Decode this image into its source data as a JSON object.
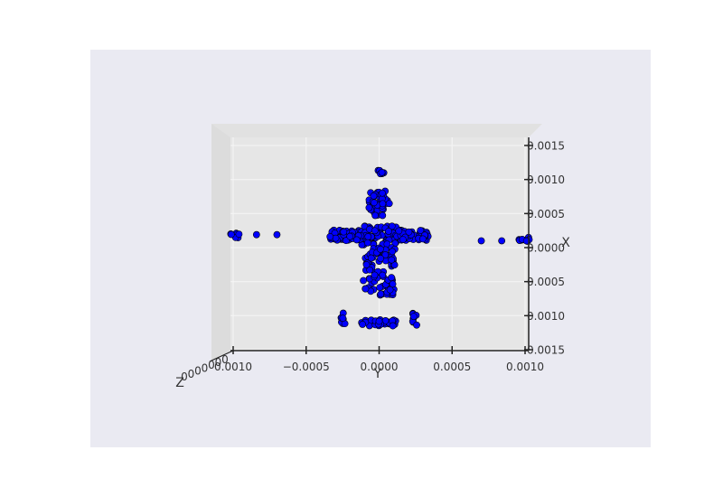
{
  "chart_data": {
    "type": "scatter",
    "projection": "3d",
    "view": "looking down the Z axis",
    "background_color": "#eaeaf2",
    "pane_color": "#e6e6e6",
    "point_color": "#0000ff",
    "point_edge_color": "#000000",
    "grid": true,
    "xlabel": "Y",
    "ylabel": "X",
    "zlabel": "Z",
    "xlim": [
      -0.001,
      0.001
    ],
    "ylim": [
      -0.0015,
      0.0015
    ],
    "x_ticks": [
      {
        "value": -0.001,
        "label": "0.0010"
      },
      {
        "value": -0.0005,
        "label": "−0.0005"
      },
      {
        "value": 0.0,
        "label": "0.0000"
      },
      {
        "value": 0.0005,
        "label": "0.0005"
      },
      {
        "value": 0.001,
        "label": "0.0010"
      }
    ],
    "y_ticks": [
      {
        "value": 0.0015,
        "label": "0.0015"
      },
      {
        "value": 0.001,
        "label": "0.0010"
      },
      {
        "value": 0.0005,
        "label": "0.0005"
      },
      {
        "value": 0.0,
        "label": "0.0000"
      },
      {
        "value": -0.0005,
        "label": "0.0005"
      },
      {
        "value": -0.001,
        "label": "0.0010"
      },
      {
        "value": -0.0015,
        "label": "0.0015"
      }
    ],
    "z_tick_labels": [
      "0",
      "0",
      "0",
      "0",
      "0",
      "0",
      "0"
    ],
    "clusters": [
      {
        "x": [
          -0.00099,
          -0.00099
        ],
        "y": [
          0.00017,
          0.00017
        ],
        "n": 10,
        "spread": [
          4e-05,
          4e-05
        ]
      },
      {
        "x": [
          -0.00084,
          -0.00084
        ],
        "y": [
          0.00019,
          0.00019
        ],
        "n": 1,
        "spread": [
          0,
          0
        ]
      },
      {
        "x": [
          -0.0007,
          -0.0007
        ],
        "y": [
          0.00019,
          0.00019
        ],
        "n": 1,
        "spread": [
          0,
          0
        ]
      },
      {
        "x": [
          0.00099,
          0.00099
        ],
        "y": [
          0.00012,
          0.00012
        ],
        "n": 10,
        "spread": [
          4e-05,
          4e-05
        ]
      },
      {
        "x": [
          0.00084,
          0.00084
        ],
        "y": [
          0.0001,
          0.0001
        ],
        "n": 1,
        "spread": [
          0,
          0
        ]
      },
      {
        "x": [
          0.0007,
          0.0007
        ],
        "y": [
          0.0001,
          0.0001
        ],
        "n": 1,
        "spread": [
          0,
          0
        ]
      },
      {
        "x": [
          -0.0,
          -0.0
        ],
        "y": [
          0.00111,
          0.00111
        ],
        "n": 6,
        "spread": [
          5e-05,
          3e-05
        ]
      },
      {
        "x": [
          -0.0,
          -0.0
        ],
        "y": [
          0.00065,
          0.00065
        ],
        "n": 40,
        "spread": [
          7e-05,
          0.00018
        ]
      },
      {
        "x": [
          -0.0,
          -0.0
        ],
        "y": [
          0.00018,
          0.00018
        ],
        "n": 180,
        "spread": [
          0.00034,
          0.00014
        ]
      },
      {
        "x": [
          -0.0,
          -0.0
        ],
        "y": [
          -0.00035,
          -0.00035
        ],
        "n": 90,
        "spread": [
          0.00011,
          0.00035
        ]
      },
      {
        "x": [
          -0.0,
          -0.0
        ],
        "y": [
          -0.0011,
          -0.0011
        ],
        "n": 25,
        "spread": [
          0.00012,
          5e-05
        ]
      },
      {
        "x": [
          -0.00025,
          -0.00025
        ],
        "y": [
          -0.00105,
          -0.00105
        ],
        "n": 8,
        "spread": [
          2e-05,
          0.0001
        ]
      },
      {
        "x": [
          0.00025,
          0.00025
        ],
        "y": [
          -0.00105,
          -0.00105
        ],
        "n": 8,
        "spread": [
          2e-05,
          0.0001
        ]
      }
    ]
  }
}
